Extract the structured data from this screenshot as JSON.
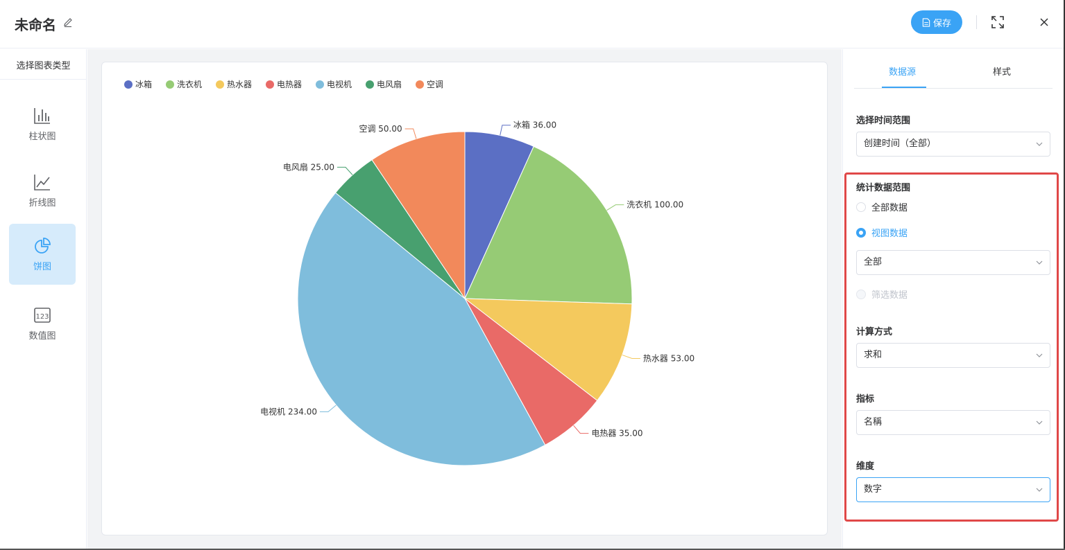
{
  "header": {
    "title": "未命名",
    "save_label": "保存"
  },
  "left_panel": {
    "title": "选择图表类型",
    "chart_types": [
      {
        "label": "柱状图",
        "icon": "bar-chart-icon"
      },
      {
        "label": "折线图",
        "icon": "line-chart-icon"
      },
      {
        "label": "饼图",
        "icon": "pie-chart-icon",
        "active": true
      },
      {
        "label": "数值图",
        "icon": "number-chart-icon"
      }
    ]
  },
  "right_panel": {
    "tabs": [
      {
        "label": "数据源",
        "active": true
      },
      {
        "label": "样式"
      }
    ],
    "time_range": {
      "label": "选择时间范围",
      "value": "创建时间（全部）"
    },
    "data_scope": {
      "label": "统计数据范围",
      "options": [
        {
          "label": "全部数据",
          "state": "unchecked"
        },
        {
          "label": "视图数据",
          "state": "checked"
        },
        {
          "label": "筛选数据",
          "state": "disabled"
        }
      ],
      "view_select": "全部"
    },
    "calc_method": {
      "label": "计算方式",
      "value": "求和"
    },
    "metric": {
      "label": "指标",
      "value": "名稱"
    },
    "dimension": {
      "label": "维度",
      "value": "数字"
    }
  },
  "colors": {
    "accent": "#3aa3f5",
    "highlight_border": "#e04848"
  },
  "chart_data": {
    "type": "pie",
    "legend_position": "top-left",
    "categories": [
      "冰箱",
      "洗衣机",
      "热水器",
      "电热器",
      "电视机",
      "电风扇",
      "空调"
    ],
    "values": [
      36.0,
      100.0,
      53.0,
      35.0,
      234.0,
      25.0,
      50.0
    ],
    "colors": [
      "#5b6fc4",
      "#96cb75",
      "#f4c95d",
      "#e96a67",
      "#7fbddc",
      "#48a06f",
      "#f2895b"
    ]
  }
}
